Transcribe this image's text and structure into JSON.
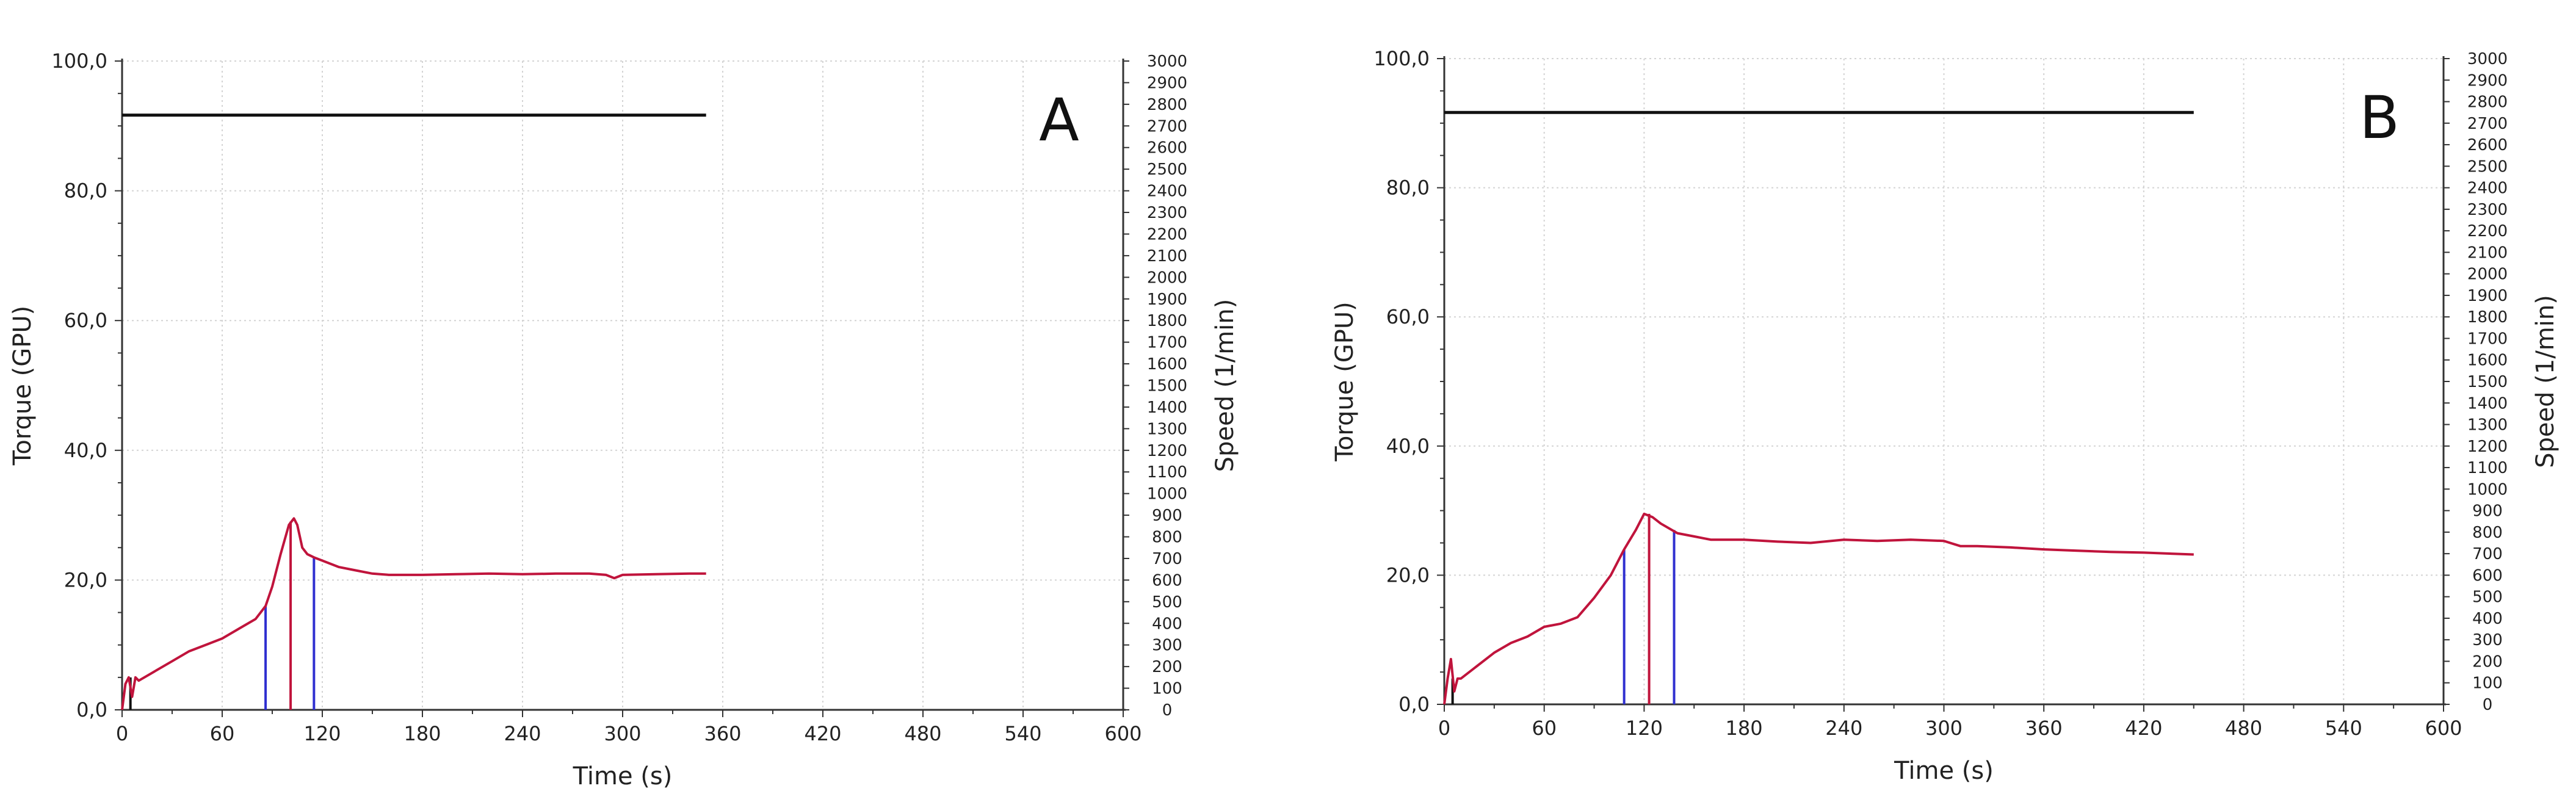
{
  "chart_data": [
    {
      "type": "line",
      "panel_label": "A",
      "xlabel": "Time (s)",
      "ylabel": "Torque (GPU)",
      "y2label": "Speed (1/min)",
      "xlim": [
        0,
        600
      ],
      "ylim": [
        0,
        100
      ],
      "y2lim": [
        0,
        3000
      ],
      "xticks": [
        "0",
        "60",
        "120",
        "180",
        "240",
        "300",
        "360",
        "420",
        "480",
        "540",
        "600"
      ],
      "yticks": [
        "0,0",
        "20,0",
        "40,0",
        "60,0",
        "80,0",
        "100,0"
      ],
      "y2ticks": [
        "0",
        "100",
        "200",
        "300",
        "400",
        "500",
        "600",
        "700",
        "800",
        "900",
        "1000",
        "1100",
        "1200",
        "1300",
        "1400",
        "1500",
        "1600",
        "1700",
        "1800",
        "1900",
        "2000",
        "2100",
        "2200",
        "2300",
        "2400",
        "2500",
        "2600",
        "2700",
        "2800",
        "2900",
        "3000"
      ],
      "grid": true,
      "series": [
        {
          "role": "torque",
          "color": "#c0143c",
          "axis": "left",
          "x": [
            0,
            2,
            4,
            6,
            8,
            10,
            20,
            30,
            40,
            50,
            60,
            70,
            80,
            86,
            90,
            95,
            100,
            103,
            105,
            108,
            111,
            115,
            120,
            130,
            140,
            150,
            160,
            180,
            200,
            220,
            240,
            260,
            280,
            290,
            295,
            300,
            320,
            340,
            350
          ],
          "y": [
            0,
            4,
            5,
            2,
            5,
            4.5,
            6,
            7.5,
            9,
            10,
            11,
            12.5,
            14,
            16,
            19,
            24,
            28.5,
            29.5,
            28.5,
            25,
            24,
            23.5,
            23,
            22,
            21.5,
            21,
            20.8,
            20.8,
            20.9,
            21,
            20.9,
            21,
            21,
            20.8,
            20.3,
            20.8,
            20.9,
            21,
            21
          ]
        },
        {
          "role": "speed",
          "color": "#111111",
          "axis": "right",
          "x": [
            0,
            350
          ],
          "y": [
            2750,
            2750
          ]
        }
      ],
      "vertical_markers": [
        {
          "x": 5,
          "color": "#111111",
          "top_y": 5
        },
        {
          "x": 86,
          "color": "#3030d0",
          "top_y": 16
        },
        {
          "x": 101,
          "color": "#c0143c",
          "top_y": 29
        },
        {
          "x": 115,
          "color": "#3030d0",
          "top_y": 23.5
        }
      ]
    },
    {
      "type": "line",
      "panel_label": "B",
      "xlabel": "Time (s)",
      "ylabel": "Torque (GPU)",
      "y2label": "Speed (1/min)",
      "xlim": [
        0,
        600
      ],
      "ylim": [
        0,
        100
      ],
      "y2lim": [
        0,
        3000
      ],
      "xticks": [
        "0",
        "60",
        "120",
        "180",
        "240",
        "300",
        "360",
        "420",
        "480",
        "540",
        "600"
      ],
      "yticks": [
        "0,0",
        "20,0",
        "40,0",
        "60,0",
        "80,0",
        "100,0"
      ],
      "y2ticks": [
        "0",
        "100",
        "200",
        "300",
        "400",
        "500",
        "600",
        "700",
        "800",
        "900",
        "1000",
        "1100",
        "1200",
        "1300",
        "1400",
        "1500",
        "1600",
        "1700",
        "1800",
        "1900",
        "2000",
        "2100",
        "2200",
        "2300",
        "2400",
        "2500",
        "2600",
        "2700",
        "2800",
        "2900",
        "3000"
      ],
      "grid": true,
      "series": [
        {
          "role": "torque",
          "color": "#c0143c",
          "axis": "left",
          "x": [
            0,
            2,
            4,
            6,
            8,
            10,
            20,
            30,
            40,
            50,
            60,
            70,
            80,
            90,
            100,
            108,
            115,
            120,
            125,
            130,
            140,
            150,
            160,
            180,
            200,
            220,
            240,
            260,
            280,
            300,
            310,
            320,
            340,
            360,
            380,
            400,
            420,
            440,
            450
          ],
          "y": [
            0,
            4,
            7,
            2,
            4,
            4,
            6,
            8,
            9.5,
            10.5,
            12,
            12.5,
            13.5,
            16.5,
            20,
            24,
            27,
            29.5,
            29,
            28,
            26.5,
            26,
            25.5,
            25.5,
            25.2,
            25,
            25.5,
            25.3,
            25.5,
            25.3,
            24.5,
            24.5,
            24.3,
            24,
            23.8,
            23.6,
            23.5,
            23.3,
            23.2
          ]
        },
        {
          "role": "speed",
          "color": "#111111",
          "axis": "right",
          "x": [
            0,
            450
          ],
          "y": [
            2750,
            2750
          ]
        }
      ],
      "vertical_markers": [
        {
          "x": 5,
          "color": "#111111",
          "top_y": 4
        },
        {
          "x": 108,
          "color": "#3030d0",
          "top_y": 24
        },
        {
          "x": 123,
          "color": "#c0143c",
          "top_y": 29.5
        },
        {
          "x": 138,
          "color": "#3030d0",
          "top_y": 27
        }
      ]
    }
  ]
}
